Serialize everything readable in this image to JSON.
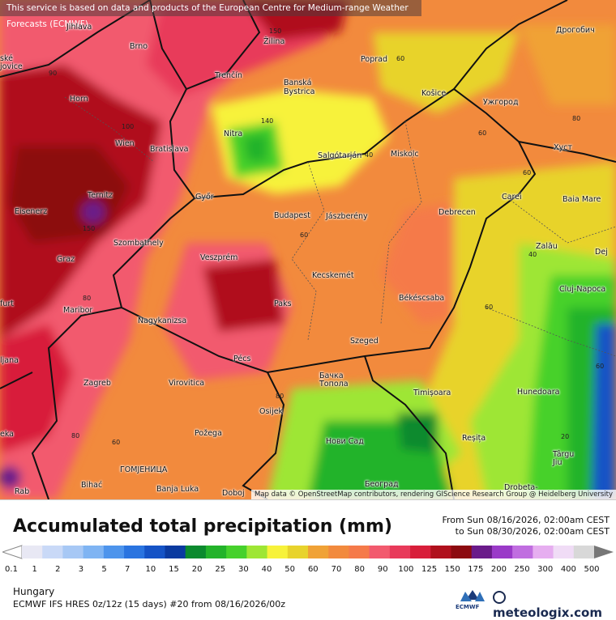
{
  "notice": "This service is based on data and products of the European Centre for Medium-range Weather Forecasts (ECMWF)",
  "attribution": "Map data © OpenStreetMap contributors, rendering GIScience Research Group @ Heidelberg University",
  "title": "Accumulated total precipitation (mm)",
  "date_from": "From Sun 08/16/2026, 02:00am CEST",
  "date_to": "to Sun 08/30/2026, 02:00am CEST",
  "region": "Hungary",
  "model": "ECMWF IFS HRES 0z/12z (15 days) #20 from  08/16/2026/00z",
  "ecmwf_label": "ECMWF",
  "brand": "meteologix.com",
  "scale": {
    "ticks": [
      "0.1",
      "1",
      "2",
      "3",
      "5",
      "7",
      "10",
      "15",
      "20",
      "25",
      "30",
      "40",
      "50",
      "60",
      "70",
      "80",
      "90",
      "100",
      "125",
      "150",
      "175",
      "200",
      "250",
      "300",
      "400",
      "500"
    ],
    "colors": [
      "#e8e8f4",
      "#c9d9f7",
      "#a7c8f5",
      "#7fb4f3",
      "#4d94ec",
      "#2a74e0",
      "#1553c6",
      "#0a3aa0",
      "#0b8a2e",
      "#23b32a",
      "#46d12c",
      "#9ee634",
      "#f7f23a",
      "#e8d32c",
      "#f0a236",
      "#f28a3d",
      "#f57a4a",
      "#f25a6e",
      "#e83a5a",
      "#d81e3a",
      "#b0101c",
      "#8c0a10",
      "#6a1b8a",
      "#9a3ac8",
      "#c06ee0",
      "#e6aef0",
      "#f0dcf6",
      "#d8d8d8"
    ]
  },
  "cities": [
    {
      "name": "Jihlava"
    },
    {
      "name": "Brno"
    },
    {
      "name": "Žilina"
    },
    {
      "name": "Poprad"
    },
    {
      "name": "Дрогобич"
    },
    {
      "name": "Trenčín"
    },
    {
      "name": "Banská Bystrica"
    },
    {
      "name": "Košice"
    },
    {
      "name": "Ужгород"
    },
    {
      "name": "Horn"
    },
    {
      "name": "Nitra"
    },
    {
      "name": "Wien"
    },
    {
      "name": "Bratislava"
    },
    {
      "name": "Salgótarján"
    },
    {
      "name": "Miskolc"
    },
    {
      "name": "Хуст"
    },
    {
      "name": "Ternitz"
    },
    {
      "name": "Győr"
    },
    {
      "name": "Carei"
    },
    {
      "name": "Baia Mare"
    },
    {
      "name": "Eisenerz"
    },
    {
      "name": "Budapest"
    },
    {
      "name": "Jászberény"
    },
    {
      "name": "Debrecen"
    },
    {
      "name": "Szombathely"
    },
    {
      "name": "Zalău"
    },
    {
      "name": "Graz"
    },
    {
      "name": "Veszprém"
    },
    {
      "name": "Dej"
    },
    {
      "name": "Kecskemét"
    },
    {
      "name": "Cluj-Napoca"
    },
    {
      "name": "Maribor"
    },
    {
      "name": "Paks"
    },
    {
      "name": "Békéscsaba"
    },
    {
      "name": "Nagykanizsa"
    },
    {
      "name": "Szeged"
    },
    {
      "name": "Pécs"
    },
    {
      "name": "ljana"
    },
    {
      "name": "Zagreb"
    },
    {
      "name": "Virovitica"
    },
    {
      "name": "Бачка Топола"
    },
    {
      "name": "Timișoara"
    },
    {
      "name": "Hunedoara"
    },
    {
      "name": "Osijek"
    },
    {
      "name": "Požega"
    },
    {
      "name": "Нови Сад"
    },
    {
      "name": "Reșița"
    },
    {
      "name": "ГОМЈЕНИЦА"
    },
    {
      "name": "Târgu Jiu"
    },
    {
      "name": "Bihać"
    },
    {
      "name": "Banja Luka"
    },
    {
      "name": "Doboj"
    },
    {
      "name": "Београд"
    },
    {
      "name": "Drobeta-"
    },
    {
      "name": "Rab"
    },
    {
      "name": "eka"
    },
    {
      "name": "furt"
    },
    {
      "name": "ské jovice"
    }
  ],
  "contour_labels": [
    "90",
    "100",
    "150",
    "140",
    "60",
    "60",
    "40",
    "60",
    "60",
    "150",
    "60",
    "40",
    "80",
    "80",
    "80",
    "60",
    "20",
    "80",
    "60"
  ]
}
